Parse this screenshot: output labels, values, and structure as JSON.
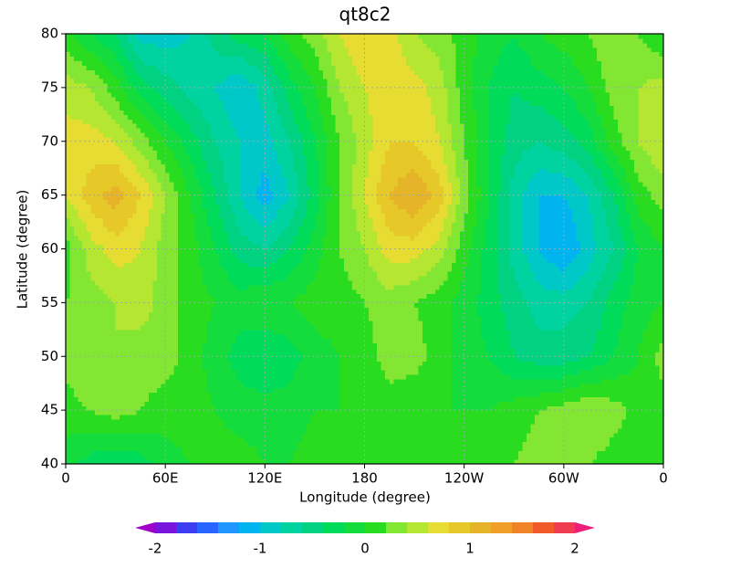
{
  "chart_data": {
    "type": "contour",
    "title": "qt8c2",
    "xlabel": "Longitude (degree)",
    "ylabel": "Latitude (degree)",
    "x": [
      0,
      15,
      30,
      45,
      60,
      75,
      90,
      105,
      120,
      135,
      150,
      165,
      180,
      195,
      210,
      225,
      240,
      255,
      270,
      285,
      300,
      315,
      330,
      345,
      360
    ],
    "y": [
      40,
      45,
      50,
      55,
      60,
      65,
      70,
      75,
      80
    ],
    "z": [
      [
        -0.1,
        -0.3,
        -0.4,
        -0.3,
        -0.1,
        0.0,
        0.1,
        0.1,
        0.0,
        0.0,
        0.1,
        0.0,
        0.0,
        0.1,
        0.1,
        0.1,
        0.1,
        0.1,
        0.2,
        0.3,
        0.3,
        0.2,
        0.1,
        0.1,
        0.0
      ],
      [
        0.1,
        0.2,
        0.3,
        0.2,
        0.1,
        0.1,
        0.0,
        -0.1,
        -0.1,
        -0.1,
        0.0,
        0.0,
        0.0,
        0.1,
        0.0,
        0.0,
        0.0,
        0.0,
        0.1,
        0.2,
        0.3,
        0.4,
        0.3,
        0.1,
        0.1
      ],
      [
        0.3,
        0.4,
        0.4,
        0.3,
        0.3,
        0.1,
        -0.1,
        -0.3,
        -0.4,
        -0.3,
        -0.1,
        0.0,
        0.1,
        0.3,
        0.3,
        0.1,
        -0.1,
        -0.2,
        -0.4,
        -0.5,
        -0.5,
        -0.4,
        -0.2,
        0.0,
        0.3
      ],
      [
        0.2,
        0.3,
        0.4,
        0.5,
        0.3,
        0.1,
        0.0,
        -0.1,
        0.0,
        0.0,
        0.1,
        0.1,
        0.2,
        0.3,
        0.2,
        0.1,
        -0.1,
        -0.3,
        -0.5,
        -0.7,
        -0.7,
        -0.6,
        -0.3,
        -0.1,
        0.0
      ],
      [
        0.1,
        0.5,
        0.7,
        0.6,
        0.3,
        0.1,
        -0.2,
        -0.5,
        -0.6,
        -0.4,
        -0.1,
        0.2,
        0.4,
        0.7,
        0.7,
        0.5,
        0.1,
        -0.3,
        -0.7,
        -1.0,
        -1.2,
        -0.9,
        -0.6,
        -0.2,
        0.0
      ],
      [
        0.6,
        0.9,
        1.1,
        0.8,
        0.4,
        0.0,
        -0.4,
        -0.8,
        -1.1,
        -0.8,
        -0.3,
        0.2,
        0.6,
        1.0,
        1.2,
        0.9,
        0.3,
        -0.2,
        -0.7,
        -1.0,
        -1.0,
        -0.8,
        -0.4,
        0.1,
        0.3
      ],
      [
        0.7,
        0.7,
        0.6,
        0.3,
        0.0,
        -0.3,
        -0.6,
        -0.8,
        -0.9,
        -0.6,
        -0.2,
        0.2,
        0.5,
        0.8,
        0.8,
        0.6,
        0.2,
        -0.2,
        -0.5,
        -0.6,
        -0.5,
        -0.3,
        0.1,
        0.4,
        0.6
      ],
      [
        0.5,
        0.4,
        0.1,
        -0.3,
        -0.5,
        -0.7,
        -0.8,
        -1.0,
        -0.7,
        -0.3,
        0.0,
        0.4,
        0.6,
        0.7,
        0.7,
        0.5,
        0.1,
        -0.2,
        -0.4,
        -0.3,
        -0.2,
        0.0,
        0.3,
        0.4,
        0.5
      ],
      [
        0.1,
        -0.2,
        -0.4,
        -0.9,
        -0.9,
        -0.8,
        -0.5,
        -0.3,
        -0.2,
        0.1,
        0.3,
        0.6,
        0.8,
        0.7,
        0.4,
        0.3,
        0.1,
        -0.1,
        -0.2,
        0.0,
        0.1,
        0.2,
        0.4,
        0.2,
        0.0
      ]
    ],
    "xlim": [
      0,
      360
    ],
    "ylim": [
      40,
      80
    ],
    "xticks": [
      0,
      {
        "value": 60,
        "label": "60E"
      },
      {
        "value": 120,
        "label": "120E"
      },
      180,
      {
        "value": 240,
        "label": "120W"
      },
      {
        "value": 300,
        "label": "60W"
      },
      {
        "value": 360,
        "label": "0"
      }
    ],
    "yticks": [
      40,
      45,
      50,
      55,
      60,
      65,
      70,
      75,
      80
    ],
    "grid": true,
    "colorbar": {
      "levels": [
        -2,
        -1.8,
        -1.6,
        -1.4,
        -1.2,
        -1,
        -0.8,
        -0.6,
        -0.4,
        -0.2,
        0,
        0.2,
        0.4,
        0.6,
        0.8,
        1,
        1.2,
        1.4,
        1.6,
        1.8,
        2
      ],
      "colors": [
        "#a000c8",
        "#7814dc",
        "#3c3cf0",
        "#2864ff",
        "#1e96ff",
        "#00b4f0",
        "#00c8c8",
        "#00d2a0",
        "#00d282",
        "#00dc5a",
        "#14dc3c",
        "#2adc20",
        "#82e632",
        "#b4e632",
        "#e6dc32",
        "#e6c828",
        "#e6b428",
        "#f0a028",
        "#f08228",
        "#f05a28",
        "#f03c50",
        "#f01e78"
      ],
      "ticks": [
        -2,
        -1,
        0,
        1,
        2
      ]
    }
  }
}
